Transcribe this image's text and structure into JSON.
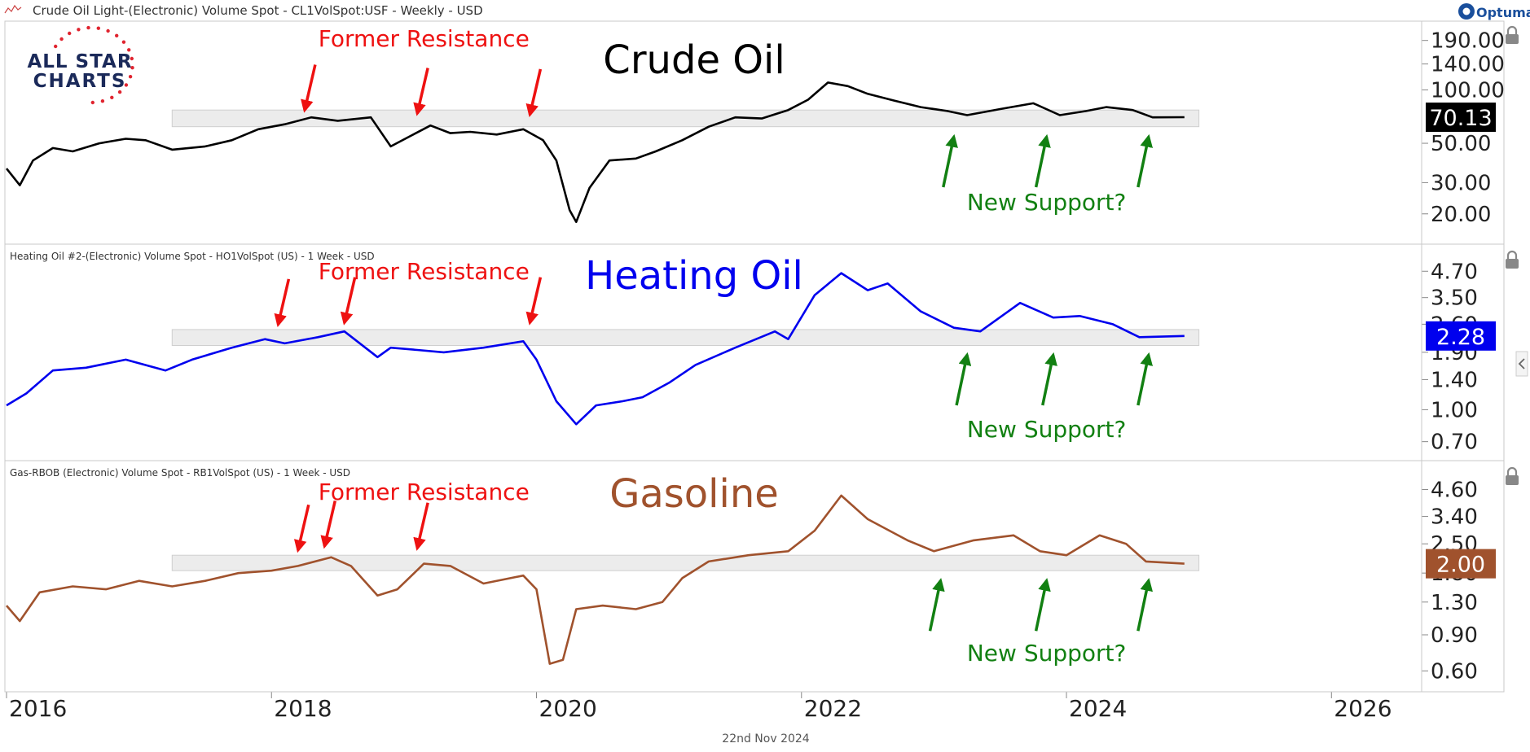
{
  "header": {
    "title": "Crude Oil Light-(Electronic) Volume Spot - CL1VolSpot:USF - Weekly - USD",
    "brand": "Optuma",
    "brand_icon": "optuma-logo-icon"
  },
  "logo": {
    "line1": "ALL STAR",
    "line2": "CHARTS"
  },
  "footer": {
    "date": "22nd Nov 2024"
  },
  "colors": {
    "crude": "#000000",
    "heating": "#0000ee",
    "gasoline": "#a0522d",
    "annotation_red": "#ee1111",
    "annotation_green": "#128012",
    "band": "#ececec"
  },
  "chart_data": [
    {
      "type": "line",
      "name": "crude-oil",
      "title": "Crude Oil",
      "subtitle": "",
      "scale": "log",
      "ylim": [
        15,
        215
      ],
      "yticks": [
        "190.00",
        "140.00",
        "100.00",
        "50.00",
        "30.00",
        "20.00"
      ],
      "ytick_values": [
        190,
        140,
        100,
        50,
        30,
        20
      ],
      "last_value": "70.13",
      "band": {
        "from": 2017.25,
        "to": 2025.0,
        "low": 62,
        "high": 77
      },
      "series": [
        {
          "x": [
            2016.0,
            2016.1,
            2016.2,
            2016.35,
            2016.5,
            2016.7,
            2016.9,
            2017.05,
            2017.25,
            2017.5,
            2017.7,
            2017.9,
            2018.1,
            2018.3,
            2018.5,
            2018.75,
            2018.9,
            2019.05,
            2019.2,
            2019.35,
            2019.5,
            2019.7,
            2019.9,
            2020.05,
            2020.15,
            2020.25,
            2020.3,
            2020.4,
            2020.55,
            2020.75,
            2020.9,
            2021.1,
            2021.3,
            2021.5,
            2021.7,
            2021.9,
            2022.05,
            2022.2,
            2022.35,
            2022.5,
            2022.7,
            2022.9,
            2023.1,
            2023.25,
            2023.5,
            2023.75,
            2023.95,
            2024.15,
            2024.3,
            2024.5,
            2024.65,
            2024.89
          ],
          "y": [
            36,
            29,
            40,
            47,
            45,
            50,
            53,
            52,
            46,
            48,
            52,
            60,
            64,
            70,
            67,
            70,
            48,
            55,
            63,
            57,
            58,
            56,
            60,
            52,
            40,
            21,
            18,
            28,
            40,
            41,
            45,
            52,
            62,
            70,
            69,
            77,
            88,
            110,
            105,
            95,
            87,
            80,
            76,
            72,
            78,
            84,
            72,
            76,
            80,
            77,
            70,
            70.13
          ]
        }
      ],
      "annotations": [
        {
          "text": "Former Resistance",
          "color": "red",
          "x": 2019.15
        },
        {
          "text": "New Support?",
          "color": "green",
          "x": 2023.85
        }
      ],
      "red_arrows": [
        {
          "x": 2018.25,
          "y": 72
        },
        {
          "x": 2019.1,
          "y": 69
        },
        {
          "x": 2019.95,
          "y": 68
        }
      ],
      "green_arrows": [
        {
          "x": 2023.15,
          "y": 58
        },
        {
          "x": 2023.85,
          "y": 58
        },
        {
          "x": 2024.62,
          "y": 58
        }
      ]
    },
    {
      "type": "line",
      "name": "heating-oil",
      "title": "Heating Oil",
      "subtitle": "Heating Oil #2-(Electronic) Volume Spot - HO1VolSpot (US) - 1 Week - USD",
      "scale": "log",
      "ylim": [
        0.62,
        5.6
      ],
      "yticks": [
        "4.70",
        "3.50",
        "2.60",
        "1.90",
        "1.40",
        "1.00",
        "0.70"
      ],
      "ytick_values": [
        4.7,
        3.5,
        2.6,
        1.9,
        1.4,
        1.0,
        0.7
      ],
      "last_value": "2.28",
      "band": {
        "from": 2017.25,
        "to": 2025.0,
        "low": 2.05,
        "high": 2.45
      },
      "series": [
        {
          "x": [
            2016.0,
            2016.15,
            2016.35,
            2016.6,
            2016.9,
            2017.2,
            2017.4,
            2017.7,
            2017.95,
            2018.1,
            2018.35,
            2018.55,
            2018.8,
            2018.9,
            2019.1,
            2019.3,
            2019.6,
            2019.9,
            2020.0,
            2020.15,
            2020.3,
            2020.45,
            2020.65,
            2020.8,
            2021.0,
            2021.2,
            2021.5,
            2021.8,
            2021.9,
            2022.1,
            2022.3,
            2022.5,
            2022.65,
            2022.9,
            2023.15,
            2023.35,
            2023.65,
            2023.9,
            2024.1,
            2024.35,
            2024.55,
            2024.89
          ],
          "y": [
            1.05,
            1.2,
            1.55,
            1.6,
            1.75,
            1.55,
            1.75,
            2.0,
            2.2,
            2.1,
            2.25,
            2.4,
            1.8,
            2.0,
            1.95,
            1.9,
            2.0,
            2.15,
            1.75,
            1.1,
            0.85,
            1.05,
            1.1,
            1.15,
            1.35,
            1.65,
            2.0,
            2.4,
            2.2,
            3.6,
            4.6,
            3.8,
            4.1,
            3.0,
            2.5,
            2.4,
            3.3,
            2.8,
            2.85,
            2.6,
            2.25,
            2.28
          ]
        }
      ],
      "annotations": [
        {
          "text": "Former Resistance",
          "color": "red",
          "x": 2019.15
        },
        {
          "text": "New Support?",
          "color": "green",
          "x": 2023.85
        }
      ],
      "red_arrows": [
        {
          "x": 2018.05,
          "y": 2.45
        },
        {
          "x": 2018.55,
          "y": 2.5
        },
        {
          "x": 2019.95,
          "y": 2.5
        }
      ],
      "green_arrows": [
        {
          "x": 2023.25,
          "y": 1.95
        },
        {
          "x": 2023.9,
          "y": 1.95
        },
        {
          "x": 2024.62,
          "y": 1.95
        }
      ]
    },
    {
      "type": "line",
      "name": "gasoline",
      "title": "Gasoline",
      "subtitle": "Gas-RBOB (Electronic) Volume Spot - RB1VolSpot (US) - 1 Week - USD",
      "scale": "log",
      "ylim": [
        0.52,
        5.6
      ],
      "yticks": [
        "4.60",
        "3.40",
        "2.50",
        "1.80",
        "1.30",
        "0.90",
        "0.60"
      ],
      "ytick_values": [
        4.6,
        3.4,
        2.5,
        1.8,
        1.3,
        0.9,
        0.6
      ],
      "last_value": "2.00",
      "band": {
        "from": 2017.25,
        "to": 2025.0,
        "low": 1.85,
        "high": 2.2
      },
      "series": [
        {
          "x": [
            2016.0,
            2016.1,
            2016.25,
            2016.5,
            2016.75,
            2017.0,
            2017.25,
            2017.5,
            2017.75,
            2018.0,
            2018.2,
            2018.45,
            2018.6,
            2018.8,
            2018.95,
            2019.15,
            2019.35,
            2019.6,
            2019.9,
            2020.0,
            2020.1,
            2020.2,
            2020.3,
            2020.5,
            2020.75,
            2020.95,
            2021.1,
            2021.3,
            2021.6,
            2021.9,
            2022.1,
            2022.3,
            2022.5,
            2022.8,
            2023.0,
            2023.3,
            2023.6,
            2023.8,
            2024.0,
            2024.25,
            2024.45,
            2024.6,
            2024.89
          ],
          "y": [
            1.25,
            1.05,
            1.45,
            1.55,
            1.5,
            1.65,
            1.55,
            1.65,
            1.8,
            1.85,
            1.95,
            2.15,
            1.95,
            1.4,
            1.5,
            2.0,
            1.95,
            1.6,
            1.75,
            1.5,
            0.65,
            0.68,
            1.2,
            1.25,
            1.2,
            1.3,
            1.7,
            2.05,
            2.2,
            2.3,
            2.9,
            4.3,
            3.3,
            2.6,
            2.3,
            2.6,
            2.75,
            2.3,
            2.2,
            2.75,
            2.5,
            2.05,
            2.0
          ]
        }
      ],
      "annotations": [
        {
          "text": "Former Resistance",
          "color": "red",
          "x": 2019.15
        },
        {
          "text": "New Support?",
          "color": "green",
          "x": 2023.85
        }
      ],
      "red_arrows": [
        {
          "x": 2018.2,
          "y": 2.2
        },
        {
          "x": 2018.4,
          "y": 2.3
        },
        {
          "x": 2019.1,
          "y": 2.25
        }
      ],
      "green_arrows": [
        {
          "x": 2023.05,
          "y": 1.75
        },
        {
          "x": 2023.85,
          "y": 1.75
        },
        {
          "x": 2024.62,
          "y": 1.75
        }
      ]
    }
  ],
  "x_axis": {
    "ticks": [
      "2016",
      "2018",
      "2020",
      "2022",
      "2024",
      "2026"
    ],
    "tick_values": [
      2016,
      2018,
      2020,
      2022,
      2024,
      2026
    ]
  }
}
